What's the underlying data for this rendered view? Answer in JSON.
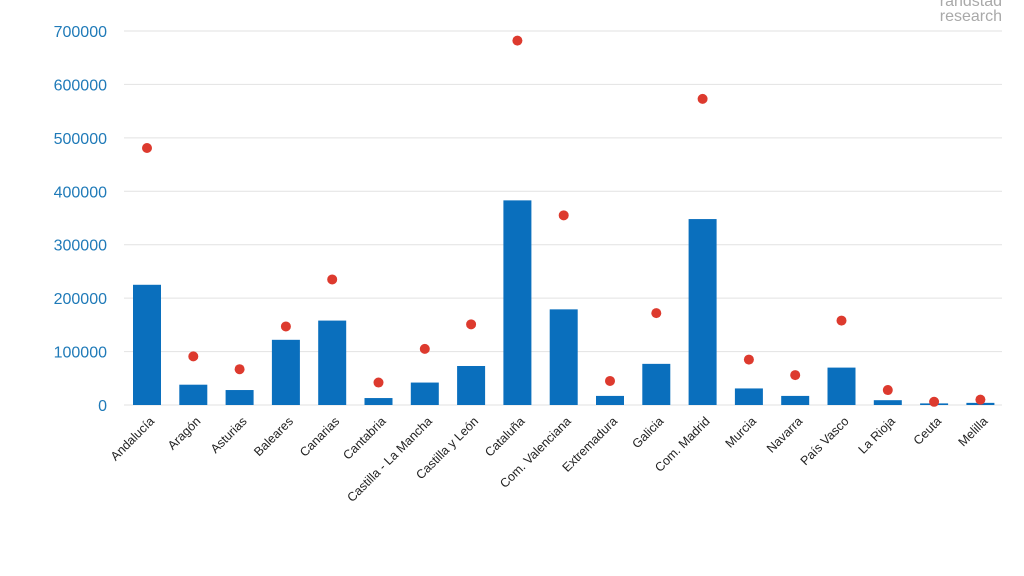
{
  "watermark": {
    "line1": "randstad",
    "line2": "research"
  },
  "colors": {
    "bar": "#0a6fbd",
    "dot": "#dd3a2e",
    "grid": "#e2e2e2",
    "tick": "#1f7ab8"
  },
  "chart_data": {
    "type": "bar",
    "title": "",
    "xlabel": "",
    "ylabel": "",
    "ylim": [
      0,
      700000
    ],
    "yticks": [
      0,
      100000,
      200000,
      300000,
      400000,
      500000,
      600000,
      700000
    ],
    "grid": true,
    "categories": [
      "Andalucía",
      "Aragón",
      "Asturias",
      "Baleares",
      "Canarias",
      "Cantabria",
      "Castilla - La Mancha",
      "Castilla y León",
      "Cataluña",
      "Com. Valenciana",
      "Extremadura",
      "Galicia",
      "Com. Madrid",
      "Murcia",
      "Navarra",
      "País Vasco",
      "La Rioja",
      "Ceuta",
      "Melilla"
    ],
    "series": [
      {
        "kind": "bar",
        "values": [
          225000,
          38000,
          28000,
          122000,
          158000,
          13000,
          42000,
          73000,
          383000,
          179000,
          17000,
          77000,
          348000,
          31000,
          17000,
          70000,
          9000,
          3000,
          4000
        ]
      },
      {
        "kind": "scatter",
        "values": [
          481000,
          91000,
          67000,
          147000,
          235000,
          42000,
          105000,
          151000,
          682000,
          355000,
          45000,
          172000,
          573000,
          85000,
          56000,
          158000,
          28000,
          6000,
          10000
        ]
      }
    ]
  }
}
